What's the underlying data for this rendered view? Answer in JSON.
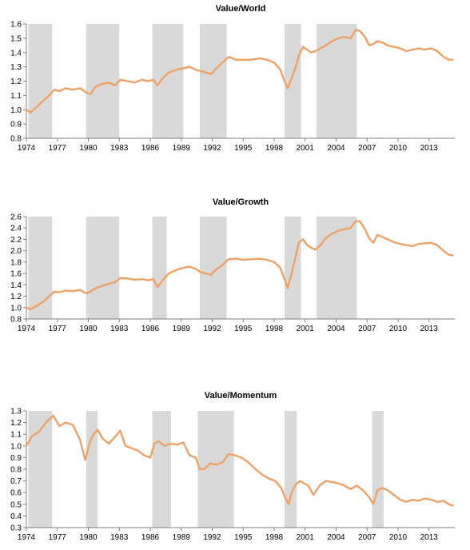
{
  "chart_data": [
    {
      "type": "line",
      "title": "Value/World",
      "xlabel": "",
      "ylabel": "",
      "xlim": [
        1974,
        2015.5
      ],
      "ylim": [
        0.8,
        1.6
      ],
      "yticks": [
        "0.8",
        "0.9",
        "1.0",
        "1.1",
        "1.2",
        "1.3",
        "1.4",
        "1.5",
        "1.6"
      ],
      "xticks": [
        "1974",
        "1977",
        "1980",
        "1983",
        "1986",
        "1989",
        "1992",
        "1995",
        "1998",
        "2001",
        "2004",
        "2007",
        "2010",
        "2013"
      ],
      "grid": false,
      "legend": "none",
      "shaded_periods": [
        [
          1974.2,
          1976.5
        ],
        [
          1979.8,
          1983.0
        ],
        [
          1986.2,
          1989.2
        ],
        [
          1990.8,
          1993.4
        ],
        [
          1999.0,
          2000.6
        ],
        [
          2002.1,
          2006.0
        ]
      ],
      "series": [
        {
          "color": "#f0a165",
          "x": [
            1974.0,
            1974.4,
            1975.0,
            1975.6,
            1976.2,
            1976.7,
            1977.2,
            1977.8,
            1978.5,
            1979.2,
            1979.8,
            1980.2,
            1980.7,
            1981.3,
            1982.0,
            1982.6,
            1983.1,
            1983.8,
            1984.5,
            1985.2,
            1985.8,
            1986.3,
            1986.7,
            1987.2,
            1987.8,
            1988.5,
            1989.2,
            1989.8,
            1990.4,
            1990.9,
            1991.4,
            1991.9,
            1992.4,
            1993.0,
            1993.6,
            1994.3,
            1995.0,
            1995.8,
            1996.6,
            1997.3,
            1998.0,
            1998.6,
            1999.0,
            1999.3,
            1999.7,
            2000.1,
            2000.4,
            2000.8,
            2001.2,
            2001.6,
            2002.0,
            2002.5,
            2003.0,
            2003.6,
            2004.2,
            2004.8,
            2005.4,
            2005.9,
            2006.3,
            2006.8,
            2007.2,
            2007.6,
            2008.0,
            2008.5,
            2009.0,
            2009.6,
            2010.2,
            2010.8,
            2011.4,
            2012.0,
            2012.6,
            2013.2,
            2013.8,
            2014.4,
            2014.9,
            2015.3
          ],
          "y": [
            1.0,
            0.98,
            1.02,
            1.06,
            1.1,
            1.14,
            1.13,
            1.15,
            1.14,
            1.15,
            1.12,
            1.11,
            1.16,
            1.18,
            1.19,
            1.17,
            1.21,
            1.2,
            1.19,
            1.21,
            1.2,
            1.21,
            1.17,
            1.22,
            1.26,
            1.28,
            1.29,
            1.3,
            1.28,
            1.27,
            1.26,
            1.25,
            1.29,
            1.33,
            1.37,
            1.35,
            1.35,
            1.35,
            1.36,
            1.35,
            1.33,
            1.28,
            1.2,
            1.15,
            1.22,
            1.3,
            1.38,
            1.44,
            1.42,
            1.4,
            1.41,
            1.43,
            1.45,
            1.48,
            1.5,
            1.51,
            1.5,
            1.56,
            1.55,
            1.51,
            1.45,
            1.46,
            1.48,
            1.47,
            1.45,
            1.44,
            1.43,
            1.41,
            1.42,
            1.43,
            1.42,
            1.43,
            1.41,
            1.37,
            1.35,
            1.35
          ]
        }
      ]
    },
    {
      "type": "line",
      "title": "Value/Growth",
      "xlabel": "",
      "ylabel": "",
      "xlim": [
        1974,
        2015.5
      ],
      "ylim": [
        0.8,
        2.6
      ],
      "yticks": [
        "0.8",
        "1.0",
        "1.2",
        "1.4",
        "1.6",
        "1.8",
        "2.0",
        "2.2",
        "2.4",
        "2.6"
      ],
      "xticks": [
        "1974",
        "1977",
        "1980",
        "1983",
        "1986",
        "1989",
        "1992",
        "1995",
        "1998",
        "2001",
        "2004",
        "2007",
        "2010",
        "2013"
      ],
      "grid": false,
      "legend": "none",
      "shaded_periods": [
        [
          1974.2,
          1976.5
        ],
        [
          1979.8,
          1983.0
        ],
        [
          1986.2,
          1987.6
        ],
        [
          1990.8,
          1993.4
        ],
        [
          1999.0,
          2000.6
        ],
        [
          2002.1,
          2006.0
        ]
      ],
      "series": [
        {
          "color": "#f0a165",
          "x": [
            1974.0,
            1974.4,
            1975.0,
            1975.6,
            1976.2,
            1976.7,
            1977.2,
            1977.8,
            1978.5,
            1979.2,
            1979.8,
            1980.2,
            1980.7,
            1981.3,
            1982.0,
            1982.6,
            1983.1,
            1983.8,
            1984.5,
            1985.2,
            1985.8,
            1986.3,
            1986.7,
            1987.2,
            1987.8,
            1988.5,
            1989.2,
            1989.8,
            1990.4,
            1990.9,
            1991.4,
            1991.9,
            1992.4,
            1993.0,
            1993.6,
            1994.3,
            1995.0,
            1995.8,
            1996.6,
            1997.3,
            1998.0,
            1998.6,
            1999.0,
            1999.3,
            1999.7,
            2000.1,
            2000.4,
            2000.8,
            2001.2,
            2001.6,
            2002.0,
            2002.5,
            2003.0,
            2003.6,
            2004.2,
            2004.8,
            2005.4,
            2005.9,
            2006.3,
            2006.8,
            2007.2,
            2007.6,
            2008.0,
            2008.5,
            2009.0,
            2009.6,
            2010.2,
            2010.8,
            2011.4,
            2012.0,
            2012.6,
            2013.2,
            2013.8,
            2014.4,
            2014.9,
            2015.3
          ],
          "y": [
            1.0,
            0.97,
            1.03,
            1.1,
            1.2,
            1.28,
            1.27,
            1.3,
            1.29,
            1.31,
            1.25,
            1.28,
            1.34,
            1.38,
            1.42,
            1.45,
            1.52,
            1.51,
            1.49,
            1.5,
            1.48,
            1.5,
            1.36,
            1.48,
            1.6,
            1.66,
            1.7,
            1.72,
            1.68,
            1.62,
            1.6,
            1.58,
            1.67,
            1.75,
            1.85,
            1.86,
            1.84,
            1.85,
            1.86,
            1.84,
            1.8,
            1.7,
            1.5,
            1.35,
            1.6,
            1.92,
            2.15,
            2.2,
            2.1,
            2.05,
            2.02,
            2.1,
            2.22,
            2.3,
            2.35,
            2.38,
            2.4,
            2.52,
            2.52,
            2.38,
            2.22,
            2.14,
            2.28,
            2.24,
            2.2,
            2.15,
            2.12,
            2.1,
            2.08,
            2.12,
            2.13,
            2.14,
            2.1,
            2.0,
            1.93,
            1.92
          ]
        }
      ]
    },
    {
      "type": "line",
      "title": "Value/Momentum",
      "xlabel": "",
      "ylabel": "",
      "xlim": [
        1974,
        2015.5
      ],
      "ylim": [
        0.3,
        1.3
      ],
      "yticks": [
        "0.3",
        "0.4",
        "0.5",
        "0.6",
        "0.7",
        "0.8",
        "0.9",
        "1.0",
        "1.1",
        "1.2",
        "1.3"
      ],
      "xticks": [
        "1974",
        "1977",
        "1980",
        "1983",
        "1986",
        "1989",
        "1992",
        "1995",
        "1998",
        "2001",
        "2004",
        "2007",
        "2010",
        "2013"
      ],
      "grid": false,
      "legend": "none",
      "shaded_periods": [
        [
          1974.2,
          1976.5
        ],
        [
          1979.8,
          1980.9
        ],
        [
          1986.2,
          1988.0
        ],
        [
          1990.6,
          1994.1
        ],
        [
          1999.0,
          2000.2
        ],
        [
          2007.5,
          2008.6
        ]
      ],
      "series": [
        {
          "color": "#f0a165",
          "x": [
            1974.0,
            1974.5,
            1975.2,
            1975.9,
            1976.6,
            1977.2,
            1977.8,
            1978.5,
            1979.2,
            1979.7,
            1980.1,
            1980.5,
            1980.9,
            1981.4,
            1982.0,
            1982.6,
            1983.1,
            1983.6,
            1984.2,
            1984.8,
            1985.4,
            1986.0,
            1986.4,
            1986.8,
            1987.4,
            1988.0,
            1988.6,
            1989.2,
            1989.8,
            1990.4,
            1990.8,
            1991.2,
            1991.8,
            1992.4,
            1993.0,
            1993.6,
            1994.2,
            1994.8,
            1995.5,
            1996.2,
            1996.9,
            1997.5,
            1998.1,
            1998.7,
            1999.1,
            1999.4,
            1999.7,
            2000.1,
            2000.5,
            2000.9,
            2001.3,
            2001.8,
            2002.4,
            2003.0,
            2003.6,
            2004.2,
            2004.8,
            2005.4,
            2006.0,
            2006.6,
            2007.2,
            2007.6,
            2008.0,
            2008.5,
            2009.0,
            2009.6,
            2010.2,
            2010.8,
            2011.4,
            2012.0,
            2012.6,
            2013.2,
            2013.8,
            2014.4,
            2014.9,
            2015.3
          ],
          "y": [
            1.0,
            1.08,
            1.12,
            1.2,
            1.26,
            1.17,
            1.2,
            1.18,
            1.05,
            0.88,
            1.02,
            1.1,
            1.14,
            1.06,
            1.02,
            1.08,
            1.13,
            1.0,
            0.98,
            0.96,
            0.92,
            0.9,
            1.02,
            1.04,
            1.0,
            1.02,
            1.01,
            1.03,
            0.92,
            0.9,
            0.8,
            0.8,
            0.85,
            0.84,
            0.86,
            0.93,
            0.92,
            0.9,
            0.86,
            0.8,
            0.75,
            0.72,
            0.7,
            0.64,
            0.55,
            0.5,
            0.6,
            0.67,
            0.7,
            0.68,
            0.66,
            0.58,
            0.66,
            0.7,
            0.69,
            0.68,
            0.66,
            0.63,
            0.66,
            0.62,
            0.56,
            0.5,
            0.62,
            0.64,
            0.62,
            0.58,
            0.54,
            0.52,
            0.54,
            0.53,
            0.55,
            0.54,
            0.52,
            0.53,
            0.5,
            0.49
          ]
        }
      ]
    }
  ]
}
